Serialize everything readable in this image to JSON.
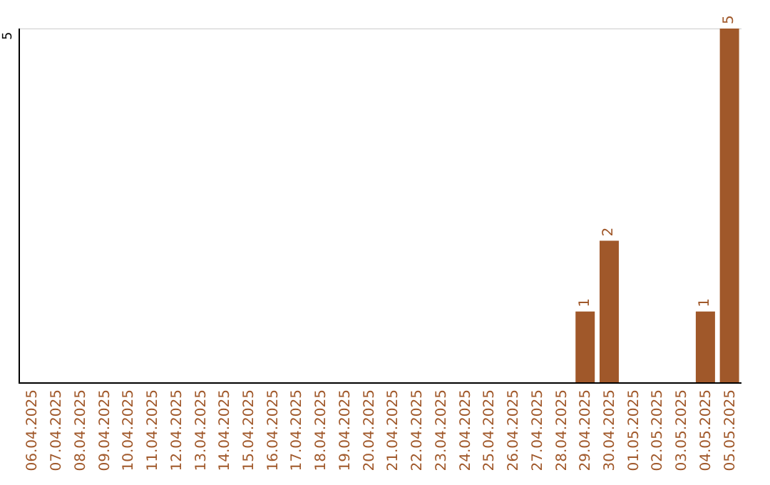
{
  "chart_data": {
    "type": "bar",
    "categories": [
      "06.04.2025",
      "07.04.2025",
      "08.04.2025",
      "09.04.2025",
      "10.04.2025",
      "11.04.2025",
      "12.04.2025",
      "13.04.2025",
      "14.04.2025",
      "15.04.2025",
      "16.04.2025",
      "17.04.2025",
      "18.04.2025",
      "19.04.2025",
      "20.04.2025",
      "21.04.2025",
      "22.04.2025",
      "23.04.2025",
      "24.04.2025",
      "25.04.2025",
      "26.04.2025",
      "27.04.2025",
      "28.04.2025",
      "29.04.2025",
      "30.04.2025",
      "01.05.2025",
      "02.05.2025",
      "03.05.2025",
      "04.05.2025",
      "05.05.2025"
    ],
    "values": [
      null,
      null,
      null,
      null,
      null,
      null,
      null,
      null,
      null,
      null,
      null,
      null,
      null,
      null,
      null,
      null,
      null,
      null,
      null,
      null,
      null,
      null,
      null,
      1,
      2,
      null,
      null,
      null,
      1,
      5
    ],
    "data_labels": true,
    "color": "#a0582a",
    "ref_lines": [
      {
        "axis": "y",
        "value": 5,
        "color": "#cccccc"
      }
    ],
    "annotations": [
      "5"
    ],
    "legend": false
  }
}
